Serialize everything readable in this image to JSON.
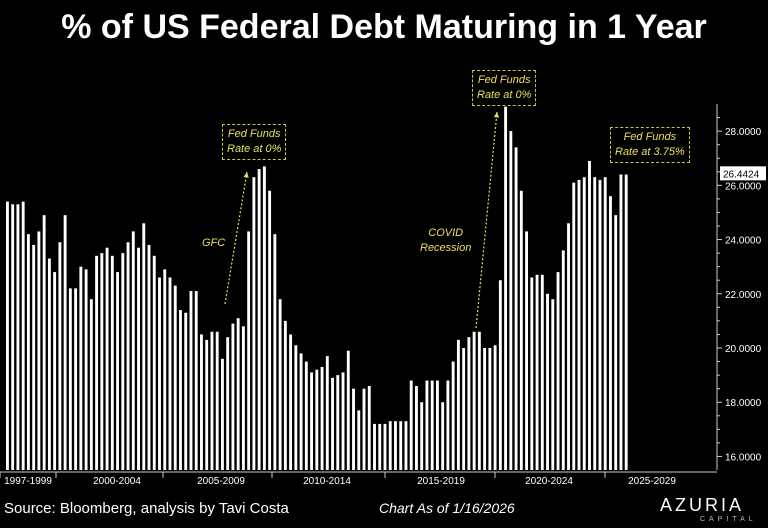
{
  "title": "% of US Federal Debt Maturing in 1 Year",
  "source": "Source: Bloomberg, analysis by Tavi Costa",
  "as_of": "Chart As of 1/16/2026",
  "logo": {
    "name": "AZURIA",
    "sub": "CAPITAL"
  },
  "colors": {
    "background": "#000000",
    "bars": "#ffffff",
    "annotation": "#e8e060"
  },
  "chart_data": {
    "type": "bar",
    "title": "% of US Federal Debt Maturing in 1 Year",
    "ylim": [
      15.5,
      29
    ],
    "y_ticks": [
      "16.0000",
      "18.0000",
      "20.0000",
      "22.0000",
      "24.0000",
      "26.0000",
      "28.0000"
    ],
    "y_tick_values": [
      16,
      18,
      20,
      22,
      24,
      26,
      28
    ],
    "last_value_label": "26.4424",
    "last_value": 26.4424,
    "x_labels": [
      "1997-1999",
      "2000-2004",
      "2005-2009",
      "2010-2014",
      "2015-2019",
      "2020-2024",
      "2025-2029"
    ],
    "values": [
      25.4,
      25.3,
      25.3,
      25.4,
      24.2,
      23.8,
      24.3,
      24.9,
      23.3,
      22.8,
      23.9,
      24.9,
      22.2,
      22.2,
      23.0,
      22.9,
      21.8,
      23.4,
      23.5,
      23.7,
      23.4,
      22.8,
      23.5,
      23.9,
      24.3,
      23.7,
      24.6,
      23.8,
      23.4,
      22.6,
      22.9,
      22.6,
      22.3,
      21.4,
      21.3,
      22.1,
      22.1,
      20.5,
      20.3,
      20.6,
      20.6,
      19.6,
      20.4,
      20.9,
      21.1,
      20.8,
      24.3,
      26.3,
      26.6,
      26.7,
      25.8,
      24.2,
      21.8,
      21.0,
      20.5,
      20.1,
      19.8,
      19.5,
      19.1,
      19.2,
      19.3,
      19.7,
      18.9,
      19.0,
      19.1,
      19.9,
      18.5,
      17.7,
      18.5,
      18.6,
      17.2,
      17.2,
      17.2,
      17.3,
      17.3,
      17.3,
      17.3,
      18.8,
      18.6,
      18.0,
      18.8,
      18.8,
      18.8,
      18.0,
      18.8,
      19.5,
      20.3,
      20.0,
      20.4,
      20.6,
      20.6,
      20.0,
      20.0,
      20.1,
      22.5,
      28.9,
      28.0,
      27.4,
      25.8,
      24.3,
      22.6,
      22.7,
      22.7,
      22.0,
      21.8,
      22.8,
      23.6,
      24.6,
      26.1,
      26.2,
      26.3,
      26.9,
      26.3,
      26.2,
      26.3,
      25.6,
      24.9,
      26.4,
      26.4
    ],
    "annotations": [
      {
        "label": "GFC",
        "boxed": false
      },
      {
        "label": "Fed Funds Rate at 0%",
        "line1": "Fed Funds",
        "line2": "Rate at 0%",
        "boxed": true
      },
      {
        "label": "COVID Recession",
        "line1": "COVID",
        "line2": "Recession",
        "boxed": false
      },
      {
        "label": "Fed Funds Rate at 0%",
        "line1": "Fed Funds",
        "line2": "Rate at 0%",
        "boxed": true
      },
      {
        "label": "Fed Funds Rate at 3.75%",
        "line1": "Fed Funds",
        "line2": "Rate at 3.75%",
        "boxed": true
      }
    ]
  }
}
